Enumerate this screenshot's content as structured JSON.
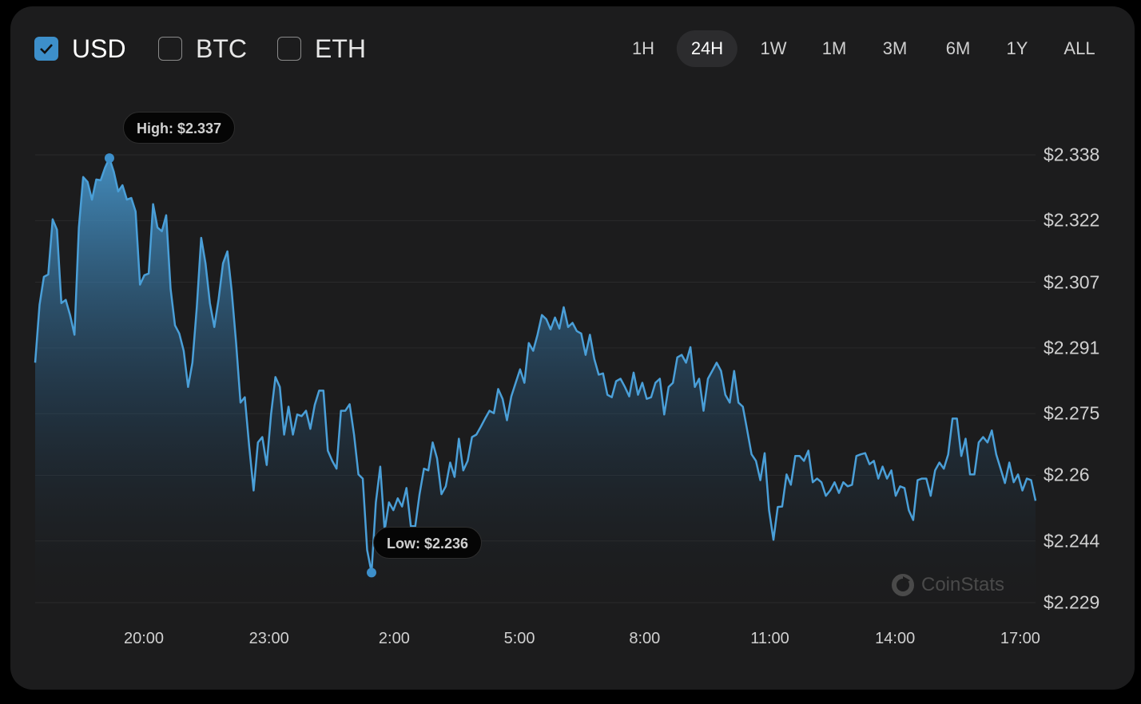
{
  "currencies": [
    {
      "label": "USD",
      "checked": true
    },
    {
      "label": "BTC",
      "checked": false
    },
    {
      "label": "ETH",
      "checked": false
    }
  ],
  "time_ranges": [
    {
      "label": "1H"
    },
    {
      "label": "24H",
      "selected": true
    },
    {
      "label": "1W"
    },
    {
      "label": "1M"
    },
    {
      "label": "3M"
    },
    {
      "label": "6M"
    },
    {
      "label": "1Y"
    },
    {
      "label": "ALL"
    }
  ],
  "watermark": "CoinStats",
  "colors": {
    "line": "#4a9fd8",
    "accent": "#3d8fca",
    "background": "#1c1c1d"
  },
  "chart_data": {
    "type": "area",
    "y_ticks": [
      "$2.338",
      "$2.322",
      "$2.307",
      "$2.291",
      "$2.275",
      "$2.26",
      "$2.244",
      "$2.229"
    ],
    "y_tick_values": [
      2.338,
      2.322,
      2.307,
      2.291,
      2.275,
      2.26,
      2.244,
      2.229
    ],
    "x_ticks": [
      "20:00",
      "23:00",
      "2:00",
      "5:00",
      "8:00",
      "11:00",
      "14:00",
      "17:00"
    ],
    "ylim": [
      2.229,
      2.338
    ],
    "grid": true,
    "high_label": "High: $2.337",
    "low_label": "Low: $2.236",
    "values": [
      2.2874,
      2.3015,
      2.3083,
      2.3089,
      2.3223,
      2.3198,
      2.3019,
      2.3027,
      2.299,
      2.2942,
      2.3203,
      2.3326,
      2.3314,
      2.3271,
      2.332,
      2.3318,
      2.3349,
      2.3372,
      2.3339,
      2.3291,
      2.3306,
      2.3271,
      2.3275,
      2.3242,
      2.3064,
      2.3087,
      2.3091,
      2.326,
      2.3203,
      2.3194,
      2.3233,
      2.3054,
      2.2965,
      2.2945,
      2.2903,
      2.2815,
      2.2874,
      2.3009,
      2.3178,
      2.3116,
      2.3019,
      2.2961,
      2.3029,
      2.3116,
      2.3145,
      2.3048,
      2.2922,
      2.2777,
      2.279,
      2.267,
      2.2563,
      2.268,
      2.2693,
      2.2625,
      2.2748,
      2.2839,
      2.2815,
      2.2699,
      2.2767,
      2.2699,
      2.2748,
      2.2744,
      2.2757,
      2.2713,
      2.2771,
      2.2806,
      2.2806,
      2.266,
      2.2635,
      2.2616,
      2.2757,
      2.2757,
      2.2773,
      2.2699,
      2.2602,
      2.2592,
      2.2418,
      2.2363,
      2.2534,
      2.2621,
      2.2466,
      2.2534,
      2.2515,
      2.2544,
      2.2524,
      2.2569,
      2.2476,
      2.2476,
      2.2554,
      2.2616,
      2.2612,
      2.268,
      2.2641,
      2.2554,
      2.2573,
      2.2631,
      2.2596,
      2.2689,
      2.2612,
      2.2635,
      2.2693,
      2.2699,
      2.2718,
      2.2738,
      2.2757,
      2.2751,
      2.281,
      2.2786,
      2.2734,
      2.2792,
      2.2825,
      2.2858,
      2.2825,
      2.2922,
      2.2903,
      2.2942,
      2.299,
      2.298,
      2.2955,
      2.2984,
      2.2957,
      2.3009,
      2.2961,
      2.2971,
      2.2951,
      2.2945,
      2.2893,
      2.2942,
      2.2883,
      2.2845,
      2.2848,
      2.2796,
      2.279,
      2.2829,
      2.2835,
      2.2815,
      2.2792,
      2.285,
      2.2796,
      2.2825,
      2.2786,
      2.279,
      2.2825,
      2.2835,
      2.2748,
      2.2815,
      2.2825,
      2.2887,
      2.2893,
      2.2874,
      2.2912,
      2.2815,
      2.2835,
      2.2757,
      2.2835,
      2.2854,
      2.2874,
      2.2854,
      2.2796,
      2.2777,
      2.2854,
      2.2777,
      2.2767,
      2.2709,
      2.2651,
      2.2635,
      2.2588,
      2.2654,
      2.2515,
      2.2443,
      2.2523,
      2.2524,
      2.2602,
      2.2577,
      2.2647,
      2.2647,
      2.2635,
      2.266,
      2.2583,
      2.2592,
      2.2583,
      2.255,
      2.2563,
      2.2583,
      2.2557,
      2.2583,
      2.2573,
      2.2577,
      2.2647,
      2.2651,
      2.2654,
      2.2627,
      2.2635,
      2.2592,
      2.2621,
      2.2592,
      2.2612,
      2.255,
      2.2573,
      2.2569,
      2.2515,
      2.2491,
      2.2588,
      2.2592,
      2.2592,
      2.255,
      2.2612,
      2.2631,
      2.2616,
      2.2651,
      2.2738,
      2.2738,
      2.2647,
      2.2689,
      2.2602,
      2.2602,
      2.268,
      2.2693,
      2.268,
      2.2709,
      2.2651,
      2.2616,
      2.2581,
      2.2631,
      2.2583,
      2.2602,
      2.2563,
      2.2592,
      2.2588,
      2.2538
    ]
  }
}
